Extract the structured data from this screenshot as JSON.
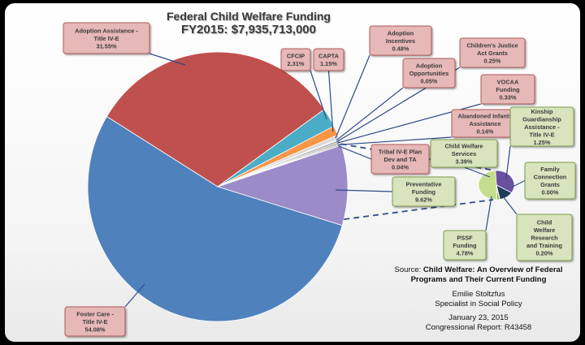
{
  "title_line1": "Federal Child Welfare Funding",
  "title_line2": "FY2015: $7,935,713,000",
  "chart_data": [
    {
      "type": "pie",
      "name": "main",
      "slices": [
        {
          "key": "vocaa",
          "label": "VOCAA Funding",
          "value": 0.33,
          "color": "#9e9e9e"
        },
        {
          "key": "abandoned",
          "label": "Abandoned Infants Assistance",
          "value": 0.14,
          "color": "#7d7d7d"
        },
        {
          "key": "tribal",
          "label": "Tribal IV-E Plan Dev and TA",
          "value": 0.04,
          "color": "#5a5a5a"
        },
        {
          "key": "preventative",
          "label": "Preventative Funding",
          "value": 9.62,
          "color": "#9b8bc8"
        },
        {
          "key": "foster",
          "label": "Foster Care - Title IV-E",
          "value": 54.08,
          "color": "#4f81bd"
        },
        {
          "key": "adoption_assist",
          "label": "Adoption Assistance - Title IV-E",
          "value": 31.55,
          "color": "#c0504d"
        },
        {
          "key": "cfcip",
          "label": "CFCIP",
          "value": 2.31,
          "color": "#4bacc6"
        },
        {
          "key": "capta",
          "label": "CAPTA",
          "value": 1.15,
          "color": "#f79646"
        },
        {
          "key": "adoption_inc",
          "label": "Adoption Incentives",
          "value": 0.48,
          "color": "#d8d8d8"
        },
        {
          "key": "adoption_opp",
          "label": "Adoption Opportunities",
          "value": 0.05,
          "color": "#bcbcbc"
        },
        {
          "key": "childrens_justice",
          "label": "Children's Justice Act Grants",
          "value": 0.25,
          "color": "#a8a8a8"
        }
      ]
    },
    {
      "type": "pie",
      "name": "breakout of Preventative Funding",
      "slices": [
        {
          "key": "cws",
          "label": "Child Welfare Services",
          "value": 3.39,
          "color": "#6a4fa0"
        },
        {
          "key": "kinship",
          "label": "Kinship Guardianship Assistance - Title IV-E",
          "value": 1.25,
          "color": "#1f3b5a"
        },
        {
          "key": "fcg",
          "label": "Family Connection Grants",
          "value": 0.0,
          "color": "#8fb04a"
        },
        {
          "key": "cwrt",
          "label": "Child Welfare Research and Training",
          "value": 0.2,
          "color": "#8aa832"
        },
        {
          "key": "pssf",
          "label": "PSSF Funding",
          "value": 4.78,
          "color": "#c5dd8f"
        }
      ]
    }
  ],
  "labels": {
    "adoption_assist": {
      "name": "Adoption Assistance - Title IV-E",
      "pct": "31.55%"
    },
    "cfcip": {
      "name": "CFCIP",
      "pct": "2.31%"
    },
    "capta": {
      "name": "CAPTA",
      "pct": "1.15%"
    },
    "adoption_inc": {
      "name": "Adoption Incentives",
      "pct": "0.48%"
    },
    "adoption_opp": {
      "name": "Adoption Opportunities",
      "pct": "0.05%"
    },
    "childrens_justice": {
      "name": "Children's Justice Act Grants",
      "pct": "0.25%"
    },
    "vocaa": {
      "name": "VOCAA Funding",
      "pct": "0.33%"
    },
    "abandoned": {
      "name": "Abandoned Infants Assistance",
      "pct": "0.14%"
    },
    "tribal": {
      "name": "Tribal IV-E Plan Dev and TA",
      "pct": "0.04%"
    },
    "preventative": {
      "name": "Preventative Funding",
      "pct": "9.62%"
    },
    "foster": {
      "name": "Foster Care - Title IV-E",
      "pct": "54.08%"
    },
    "cws": {
      "name": "Child Welfare Services",
      "pct": "3.39%"
    },
    "kinship": {
      "name": "Kinship Guardianship Assistance - Title IV-E",
      "pct": "1.25%"
    },
    "fcg": {
      "name": "Family Connection Grants",
      "pct": "0.00%"
    },
    "cwrt": {
      "name": "Child Welfare Research and Training",
      "pct": "0.20%"
    },
    "pssf": {
      "name": "PSSF Funding",
      "pct": "4.78%"
    }
  },
  "source": {
    "prefix": "Source: ",
    "title_line1": "Child Welfare: An Overview of Federal",
    "title_line2": "Programs and Their Current Funding",
    "author": "Emilie Stoltzfus",
    "author_title": "Specialist in Social Policy",
    "date": "January 23, 2015",
    "report": "Congressional Report: R43458"
  },
  "colors": {
    "pink_box": "#e6b8b7",
    "pink_border": "#b05a58",
    "green_box": "#d7e4bd",
    "green_border": "#7f9a48",
    "leader": "#2f4a8a"
  }
}
